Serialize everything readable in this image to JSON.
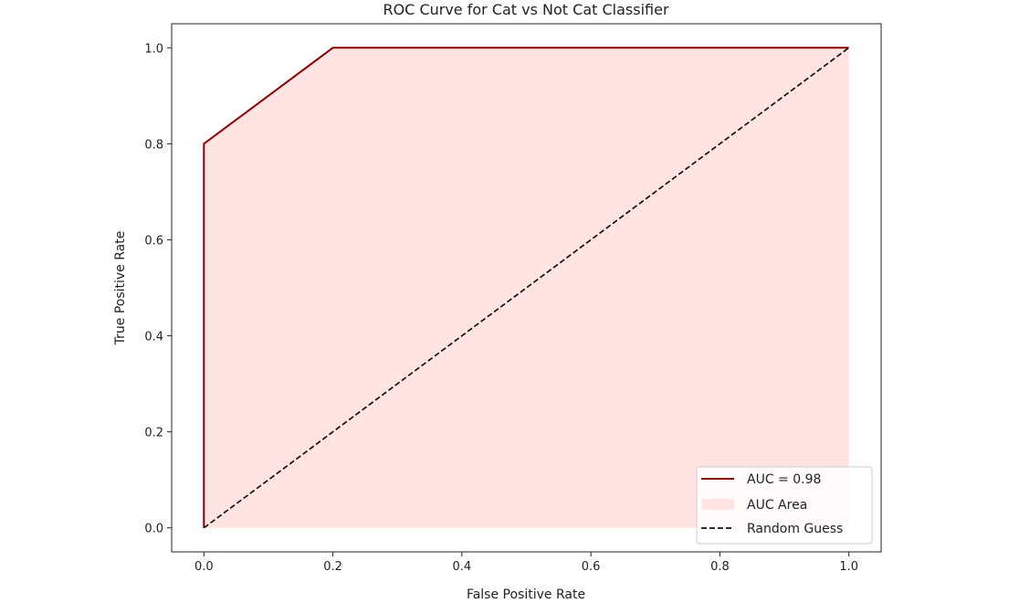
{
  "chart_data": {
    "type": "line",
    "title": "ROC Curve for Cat vs Not Cat Classifier",
    "xlabel": "False Positive Rate",
    "ylabel": "True Positive Rate",
    "xlim": [
      -0.05,
      1.05
    ],
    "ylim": [
      -0.05,
      1.05
    ],
    "xticks": [
      "0.0",
      "0.2",
      "0.4",
      "0.6",
      "0.8",
      "1.0"
    ],
    "yticks": [
      "0.0",
      "0.2",
      "0.4",
      "0.6",
      "0.8",
      "1.0"
    ],
    "grid": false,
    "legend_placement": "lower-right",
    "series": [
      {
        "name": "AUC = 0.98",
        "kind": "line",
        "color": "#8b0000",
        "x": [
          0,
          0,
          0.2,
          1.0
        ],
        "y": [
          0,
          0.8,
          1.0,
          1.0
        ]
      },
      {
        "name": "AUC Area",
        "kind": "area",
        "color": "#ffe4e1",
        "x": [
          0,
          0,
          0.2,
          1.0
        ],
        "y": [
          0,
          0.8,
          1.0,
          1.0
        ]
      },
      {
        "name": "Random Guess",
        "kind": "dashed-line",
        "color": "#111111",
        "x": [
          0,
          1
        ],
        "y": [
          0,
          1
        ]
      }
    ]
  }
}
